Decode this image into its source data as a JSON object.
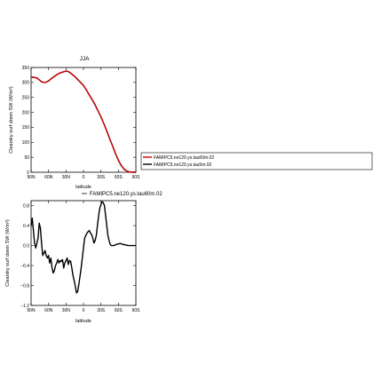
{
  "chart_data": [
    {
      "type": "line",
      "title": "JJA",
      "xlabel": "latitude",
      "ylabel": "Clearsky surf down SW (W/m²)",
      "ylim": [
        0,
        350
      ],
      "xlim": [
        -90,
        90
      ],
      "yticks": [
        0,
        50,
        100,
        150,
        200,
        250,
        300,
        350
      ],
      "xticks": [
        -90,
        -60,
        -30,
        0,
        30,
        60,
        90
      ],
      "xticklabels": [
        "90N",
        "60N",
        "30N",
        "0",
        "30S",
        "60S",
        "90S"
      ],
      "legend": "outside-right",
      "series": [
        {
          "name": "FAMIPC5.ne120.ys.tau60m.02",
          "color": "#cc0000",
          "x": [
            -90,
            -85,
            -80,
            -75,
            -72,
            -68,
            -64,
            -60,
            -55,
            -50,
            -45,
            -40,
            -35,
            -30,
            -27,
            -24,
            -20,
            -15,
            -10,
            -5,
            0,
            5,
            10,
            15,
            20,
            25,
            30,
            35,
            40,
            45,
            50,
            55,
            60,
            65,
            70,
            75,
            80,
            85,
            90
          ],
          "values": [
            318,
            317,
            315,
            307,
            302,
            300,
            301,
            305,
            313,
            320,
            327,
            332,
            335,
            338,
            337,
            334,
            328,
            320,
            310,
            300,
            290,
            275,
            258,
            242,
            225,
            205,
            185,
            162,
            138,
            112,
            88,
            62,
            40,
            22,
            10,
            3,
            1,
            0,
            0
          ]
        },
        {
          "name": "FAMIPC5.ne120.ys.tau5m.02",
          "color": "#000000",
          "x": [
            -90,
            -85,
            -80,
            -75,
            -72,
            -68,
            -64,
            -60,
            -55,
            -50,
            -45,
            -40,
            -35,
            -30,
            -27,
            -24,
            -20,
            -15,
            -10,
            -5,
            0,
            5,
            10,
            15,
            20,
            25,
            30,
            35,
            40,
            45,
            50,
            55,
            60,
            65,
            70,
            75,
            80,
            85,
            90
          ],
          "values": [
            318,
            317,
            315,
            307,
            302,
            300,
            301,
            305,
            313,
            320,
            327,
            332,
            335,
            338,
            337,
            334,
            328,
            320,
            310,
            300,
            290,
            275,
            258,
            242,
            225,
            205,
            185,
            162,
            138,
            112,
            88,
            62,
            40,
            22,
            10,
            3,
            1,
            0,
            0
          ]
        }
      ]
    },
    {
      "type": "line",
      "title": "",
      "xlabel": "latitude",
      "ylabel": "Clearsky surf down SW (W/m²)",
      "ylim": [
        -1.2,
        0.9
      ],
      "xlim": [
        -90,
        90
      ],
      "yticks": [
        -1.2,
        -0.8,
        -0.4,
        0.0,
        0.4,
        0.8
      ],
      "yticklabels": [
        "−1.2",
        "−0.8",
        "−0.4",
        "0.0",
        "0.4",
        "0.8"
      ],
      "xticks": [
        -90,
        -60,
        -30,
        0,
        30,
        60,
        90
      ],
      "xticklabels": [
        "90N",
        "60N",
        "30N",
        "0",
        "30S",
        "60S",
        "90S"
      ],
      "legend": "top-right",
      "series": [
        {
          "name": "FAMIPC5.ne120.ys.tau60m.02",
          "color": "#000000",
          "x": [
            -90,
            -88,
            -86,
            -84,
            -82,
            -80,
            -78,
            -76,
            -74,
            -72,
            -70,
            -68,
            -66,
            -64,
            -62,
            -60,
            -58,
            -56,
            -54,
            -52,
            -50,
            -48,
            -46,
            -44,
            -42,
            -40,
            -38,
            -36,
            -34,
            -32,
            -30,
            -28,
            -26,
            -24,
            -22,
            -20,
            -18,
            -16,
            -14,
            -12,
            -10,
            -8,
            -6,
            -4,
            -2,
            0,
            2,
            4,
            6,
            8,
            10,
            12,
            14,
            16,
            18,
            20,
            22,
            24,
            26,
            28,
            30,
            32,
            34,
            36,
            38,
            40,
            42,
            44,
            46,
            48,
            50,
            52,
            54,
            56,
            58,
            60,
            62,
            64,
            66,
            68,
            70,
            72,
            74,
            76,
            78,
            80,
            82,
            84,
            86,
            88,
            90
          ],
          "values": [
            0.4,
            0.55,
            0.3,
            0.05,
            -0.05,
            0.05,
            0.15,
            0.45,
            0.35,
            0.05,
            -0.2,
            -0.15,
            -0.1,
            -0.2,
            -0.25,
            -0.2,
            -0.35,
            -0.25,
            -0.45,
            -0.55,
            -0.5,
            -0.4,
            -0.35,
            -0.28,
            -0.35,
            -0.3,
            -0.32,
            -0.28,
            -0.45,
            -0.35,
            -0.3,
            -0.25,
            -0.38,
            -0.3,
            -0.32,
            -0.45,
            -0.6,
            -0.7,
            -0.82,
            -0.95,
            -0.92,
            -0.78,
            -0.62,
            -0.45,
            -0.25,
            -0.05,
            0.15,
            0.2,
            0.25,
            0.28,
            0.3,
            0.25,
            0.22,
            0.15,
            0.05,
            0.1,
            0.2,
            0.4,
            0.6,
            0.75,
            0.82,
            0.88,
            0.86,
            0.8,
            0.6,
            0.4,
            0.2,
            0.1,
            0.02,
            0.0,
            0.0,
            0.0,
            0.01,
            0.02,
            0.03,
            0.03,
            0.04,
            0.04,
            0.03,
            0.02,
            0.02,
            0.01,
            0.01,
            0.0,
            0.0,
            0.0,
            0.0,
            0.0,
            0.0,
            0.0,
            0.0
          ]
        }
      ]
    }
  ]
}
